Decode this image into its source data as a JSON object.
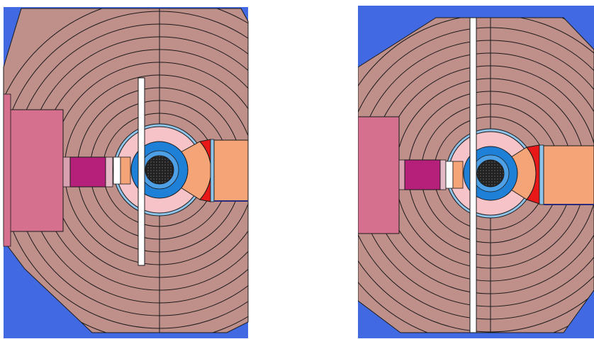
{
  "colors": {
    "background": "#ffffff",
    "outer_blue": "#4169e1",
    "shield_mauve": "#bf8f8a",
    "outline": "#1a1a1a",
    "pink_block": "#d5708f",
    "magenta_block": "#b5207a",
    "light_pink": "#f6c3c8",
    "salmon": "#f5a477",
    "red_wedge": "#e81818",
    "light_blue_ring": "#8ec3ea",
    "core_blue": "#1f80d8",
    "core_dark": "#222222",
    "white_slot": "#ffffff"
  },
  "panels": [
    {
      "name": "left-configuration"
    },
    {
      "name": "right-configuration"
    }
  ]
}
